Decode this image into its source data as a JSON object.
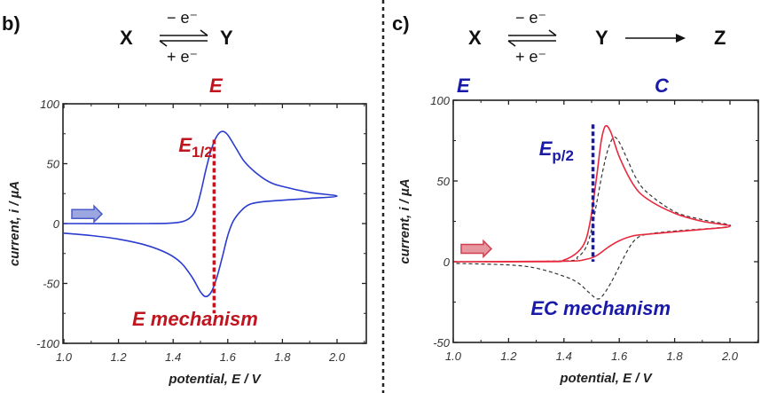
{
  "divider_color": "#222222",
  "panels": [
    {
      "letter": "b)",
      "scheme": {
        "species": [
          "X",
          "Y"
        ],
        "top": "− e⁻",
        "bottom": "+ e⁻"
      },
      "step_labels": [
        {
          "text": "E",
          "color": "#c0141e"
        }
      ],
      "annotation_sub": {
        "main": "E",
        "sub": "1/2",
        "color": "#c0141e"
      },
      "mechanism": {
        "text": "E mechanism",
        "color": "#c0141e"
      }
    },
    {
      "letter": "c)",
      "scheme": {
        "species": [
          "X",
          "Y",
          "Z"
        ],
        "top": "− e⁻",
        "bottom": "+ e⁻"
      },
      "step_labels": [
        {
          "text": "E",
          "color": "#1a1aa8"
        },
        {
          "text": "C",
          "color": "#1a1aa8"
        }
      ],
      "annotation_sub": {
        "main": "E",
        "sub": "p/2",
        "color": "#1a1aa8"
      },
      "mechanism": {
        "text": "EC mechanism",
        "color": "#1a1aa8"
      }
    }
  ],
  "chart_data": [
    {
      "type": "line",
      "xlabel": "potential, E / V",
      "ylabel": "current, i / µA",
      "xlim": [
        1.0,
        2.1
      ],
      "ylim": [
        -100,
        100
      ],
      "xticks": [
        "1.0",
        "1.2",
        "1.4",
        "1.6",
        "1.8",
        "2.0"
      ],
      "yticks": [
        "-100",
        "-50",
        "0",
        "50",
        "100"
      ],
      "grid": false,
      "scan_arrow": {
        "color": "#4a5cc8",
        "direction": "right"
      },
      "vline": {
        "x": 1.55,
        "y_range": [
          -75,
          70
        ],
        "color": "#c0141e",
        "style": "dotted"
      },
      "series": [
        {
          "color": "#2a3cd0",
          "style": "solid",
          "points": [
            [
              1.0,
              0
            ],
            [
              1.3,
              0
            ],
            [
              1.4,
              0.5
            ],
            [
              1.45,
              3
            ],
            [
              1.48,
              10
            ],
            [
              1.5,
              25
            ],
            [
              1.52,
              45
            ],
            [
              1.54,
              62
            ],
            [
              1.56,
              73
            ],
            [
              1.58,
              77
            ],
            [
              1.6,
              74
            ],
            [
              1.63,
              63
            ],
            [
              1.66,
              52
            ],
            [
              1.7,
              43
            ],
            [
              1.75,
              35
            ],
            [
              1.8,
              31
            ],
            [
              1.9,
              26
            ],
            [
              2.0,
              23
            ],
            [
              1.9,
              21
            ],
            [
              1.8,
              19.5
            ],
            [
              1.72,
              18
            ],
            [
              1.68,
              16
            ],
            [
              1.65,
              11
            ],
            [
              1.62,
              2
            ],
            [
              1.6,
              -10
            ],
            [
              1.58,
              -28
            ],
            [
              1.56,
              -45
            ],
            [
              1.54,
              -57
            ],
            [
              1.52,
              -61
            ],
            [
              1.5,
              -57
            ],
            [
              1.47,
              -45
            ],
            [
              1.43,
              -33
            ],
            [
              1.38,
              -25
            ],
            [
              1.3,
              -18
            ],
            [
              1.2,
              -13
            ],
            [
              1.1,
              -10
            ],
            [
              1.0,
              -8
            ]
          ]
        }
      ]
    },
    {
      "type": "line",
      "xlabel": "potential, E / V",
      "ylabel": "current, i / µA",
      "xlim": [
        1.0,
        2.1
      ],
      "ylim": [
        -50,
        100
      ],
      "xticks": [
        "1.0",
        "1.2",
        "1.4",
        "1.6",
        "1.8",
        "2.0"
      ],
      "yticks": [
        "-50",
        "0",
        "50",
        "100"
      ],
      "grid": false,
      "scan_arrow": {
        "color": "#d04050",
        "direction": "right"
      },
      "vline": {
        "x": 1.505,
        "y_range": [
          0,
          85
        ],
        "color": "#1a1aa8",
        "style": "dotted"
      },
      "series": [
        {
          "color": "#333333",
          "style": "dashed",
          "points": [
            [
              1.0,
              0
            ],
            [
              1.4,
              0.5
            ],
            [
              1.45,
              3
            ],
            [
              1.48,
              9
            ],
            [
              1.5,
              20
            ],
            [
              1.52,
              38
            ],
            [
              1.54,
              56
            ],
            [
              1.56,
              70
            ],
            [
              1.58,
              77
            ],
            [
              1.6,
              74
            ],
            [
              1.63,
              63
            ],
            [
              1.66,
              52
            ],
            [
              1.7,
              43
            ],
            [
              1.8,
              31
            ],
            [
              1.9,
              26
            ],
            [
              2.0,
              22
            ],
            [
              1.8,
              19
            ],
            [
              1.7,
              17
            ],
            [
              1.66,
              14
            ],
            [
              1.63,
              7
            ],
            [
              1.6,
              -3
            ],
            [
              1.57,
              -13
            ],
            [
              1.54,
              -21
            ],
            [
              1.52,
              -23
            ],
            [
              1.49,
              -19
            ],
            [
              1.45,
              -13
            ],
            [
              1.4,
              -9
            ],
            [
              1.3,
              -4
            ],
            [
              1.2,
              -2
            ],
            [
              1.0,
              -1
            ]
          ]
        },
        {
          "color": "#e8283c",
          "style": "solid",
          "points": [
            [
              1.0,
              0
            ],
            [
              1.35,
              0
            ],
            [
              1.4,
              1
            ],
            [
              1.45,
              6
            ],
            [
              1.48,
              14
            ],
            [
              1.5,
              30
            ],
            [
              1.52,
              55
            ],
            [
              1.535,
              75
            ],
            [
              1.55,
              84
            ],
            [
              1.57,
              80
            ],
            [
              1.6,
              65
            ],
            [
              1.65,
              48
            ],
            [
              1.7,
              39
            ],
            [
              1.8,
              30
            ],
            [
              1.9,
              25
            ],
            [
              2.0,
              22
            ],
            [
              1.9,
              20
            ],
            [
              1.8,
              18.5
            ],
            [
              1.7,
              17
            ],
            [
              1.65,
              16
            ],
            [
              1.6,
              13
            ],
            [
              1.56,
              9
            ],
            [
              1.52,
              4
            ],
            [
              1.48,
              1.5
            ],
            [
              1.4,
              0.3
            ],
            [
              1.0,
              0
            ]
          ]
        }
      ]
    }
  ]
}
